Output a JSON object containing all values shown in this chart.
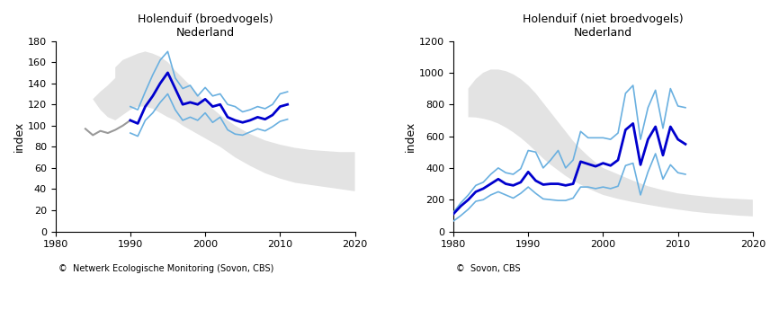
{
  "title1": "Holenduif (broedvogels)\nNederland",
  "title2": "Holenduif (niet broedvogels)\nNederland",
  "credit1": "©  Netwerk Ecologische Monitoring (Sovon, CBS)",
  "credit2": "©  Sovon, CBS",
  "ylabel": "index",
  "xlim": [
    1980,
    2020
  ],
  "ylim1": [
    0,
    180
  ],
  "ylim2": [
    0,
    1200
  ],
  "yticks1": [
    0,
    20,
    40,
    60,
    80,
    100,
    120,
    140,
    160,
    180
  ],
  "yticks2": [
    0,
    200,
    400,
    600,
    800,
    1000,
    1200
  ],
  "xticks": [
    1980,
    1990,
    2000,
    2010,
    2020
  ],
  "plot1": {
    "gray_years": [
      1984,
      1985,
      1986,
      1987,
      1988,
      1989,
      1990
    ],
    "gray_values": [
      97,
      91,
      95,
      93,
      96,
      100,
      105
    ],
    "main_years": [
      1990,
      1991,
      1992,
      1993,
      1994,
      1995,
      1996,
      1997,
      1998,
      1999,
      2000,
      2001,
      2002,
      2003,
      2004,
      2005,
      2006,
      2007,
      2008,
      2009,
      2010,
      2011
    ],
    "main_values": [
      105,
      102,
      118,
      128,
      140,
      150,
      135,
      120,
      122,
      120,
      125,
      118,
      120,
      108,
      105,
      103,
      105,
      108,
      106,
      110,
      118,
      120
    ],
    "upper_years": [
      1990,
      1991,
      1992,
      1993,
      1994,
      1995,
      1996,
      1997,
      1998,
      1999,
      2000,
      2001,
      2002,
      2003,
      2004,
      2005,
      2006,
      2007,
      2008,
      2009,
      2010,
      2011
    ],
    "upper_values": [
      118,
      115,
      132,
      148,
      162,
      170,
      145,
      135,
      138,
      128,
      136,
      128,
      130,
      120,
      118,
      113,
      115,
      118,
      116,
      120,
      130,
      132
    ],
    "lower_years": [
      1990,
      1991,
      1992,
      1993,
      1994,
      1995,
      1996,
      1997,
      1998,
      1999,
      2000,
      2001,
      2002,
      2003,
      2004,
      2005,
      2006,
      2007,
      2008,
      2009,
      2010,
      2011
    ],
    "lower_values": [
      93,
      90,
      105,
      112,
      122,
      130,
      115,
      105,
      108,
      105,
      112,
      103,
      108,
      96,
      92,
      91,
      94,
      97,
      95,
      99,
      104,
      106
    ],
    "sil_x": [
      1988,
      1989,
      1990,
      1991,
      1992,
      1993,
      1994,
      1995,
      1996,
      1997,
      1998,
      1999,
      2000,
      2002,
      2004,
      2006,
      2008,
      2010,
      2012,
      2014,
      2016,
      2018,
      2020,
      2020,
      2018,
      2016,
      2014,
      2012,
      2010,
      2008,
      2006,
      2004,
      2002,
      2000,
      1999,
      1998,
      1997,
      1996,
      1995,
      1994,
      1993,
      1992,
      1991,
      1990,
      1989,
      1988,
      1987,
      1986,
      1985,
      1986,
      1987,
      1988
    ],
    "sil_y": [
      155,
      162,
      165,
      168,
      170,
      168,
      165,
      160,
      152,
      145,
      138,
      130,
      122,
      110,
      100,
      92,
      86,
      82,
      79,
      77,
      76,
      75,
      75,
      38,
      40,
      42,
      44,
      46,
      50,
      55,
      62,
      70,
      80,
      88,
      92,
      96,
      100,
      105,
      108,
      112,
      116,
      118,
      118,
      115,
      110,
      105,
      108,
      115,
      125,
      132,
      138,
      145
    ]
  },
  "plot2": {
    "main_years": [
      1980,
      1981,
      1982,
      1983,
      1984,
      1985,
      1986,
      1987,
      1988,
      1989,
      1990,
      1991,
      1992,
      1993,
      1994,
      1995,
      1996,
      1997,
      1998,
      1999,
      2000,
      2001,
      2002,
      2003,
      2004,
      2005,
      2006,
      2007,
      2008,
      2009,
      2010,
      2011
    ],
    "main_values": [
      110,
      160,
      200,
      250,
      270,
      300,
      330,
      300,
      290,
      310,
      375,
      320,
      295,
      300,
      300,
      290,
      300,
      440,
      425,
      410,
      430,
      415,
      450,
      640,
      680,
      420,
      580,
      660,
      480,
      660,
      580,
      550
    ],
    "upper_years": [
      1980,
      1981,
      1982,
      1983,
      1984,
      1985,
      1986,
      1987,
      1988,
      1989,
      1990,
      1991,
      1992,
      1993,
      1994,
      1995,
      1996,
      1997,
      1998,
      1999,
      2000,
      2001,
      2002,
      2003,
      2004,
      2005,
      2006,
      2007,
      2008,
      2009,
      2010,
      2011
    ],
    "upper_values": [
      120,
      180,
      230,
      290,
      310,
      360,
      400,
      370,
      360,
      395,
      510,
      500,
      400,
      450,
      510,
      400,
      450,
      630,
      590,
      590,
      590,
      580,
      620,
      870,
      920,
      580,
      780,
      890,
      650,
      900,
      790,
      780
    ],
    "lower_years": [
      1980,
      1981,
      1982,
      1983,
      1984,
      1985,
      1986,
      1987,
      1988,
      1989,
      1990,
      1991,
      1992,
      1993,
      1994,
      1995,
      1996,
      1997,
      1998,
      1999,
      2000,
      2001,
      2002,
      2003,
      2004,
      2005,
      2006,
      2007,
      2008,
      2009,
      2010,
      2011
    ],
    "lower_values": [
      65,
      100,
      140,
      190,
      200,
      230,
      250,
      230,
      210,
      240,
      280,
      240,
      205,
      200,
      195,
      195,
      210,
      280,
      280,
      270,
      280,
      270,
      285,
      415,
      430,
      230,
      375,
      490,
      330,
      420,
      370,
      360
    ],
    "sil_x": [
      1982,
      1983,
      1984,
      1985,
      1986,
      1987,
      1988,
      1989,
      1990,
      1991,
      1992,
      1993,
      1994,
      1995,
      1996,
      1997,
      1998,
      1999,
      2000,
      2002,
      2004,
      2006,
      2008,
      2010,
      2012,
      2014,
      2016,
      2018,
      2020,
      2020,
      2018,
      2016,
      2014,
      2012,
      2010,
      2008,
      2006,
      2004,
      2002,
      2000,
      1999,
      1998,
      1997,
      1996,
      1995,
      1994,
      1993,
      1992,
      1991,
      1990,
      1989,
      1988,
      1987,
      1986,
      1985,
      1984,
      1983,
      1982
    ],
    "sil_y": [
      900,
      960,
      1000,
      1020,
      1020,
      1010,
      990,
      960,
      920,
      870,
      810,
      750,
      690,
      630,
      570,
      520,
      475,
      435,
      400,
      360,
      320,
      285,
      260,
      240,
      228,
      218,
      210,
      205,
      200,
      95,
      100,
      108,
      115,
      125,
      138,
      152,
      168,
      185,
      205,
      230,
      250,
      270,
      295,
      320,
      350,
      385,
      420,
      460,
      505,
      550,
      590,
      625,
      655,
      680,
      698,
      710,
      718,
      720,
      900
    ]
  },
  "dark_blue": "#0000cd",
  "light_blue": "#6ab0e0",
  "gray_line": "#999999",
  "silhouette_color": "#e0e0e0"
}
